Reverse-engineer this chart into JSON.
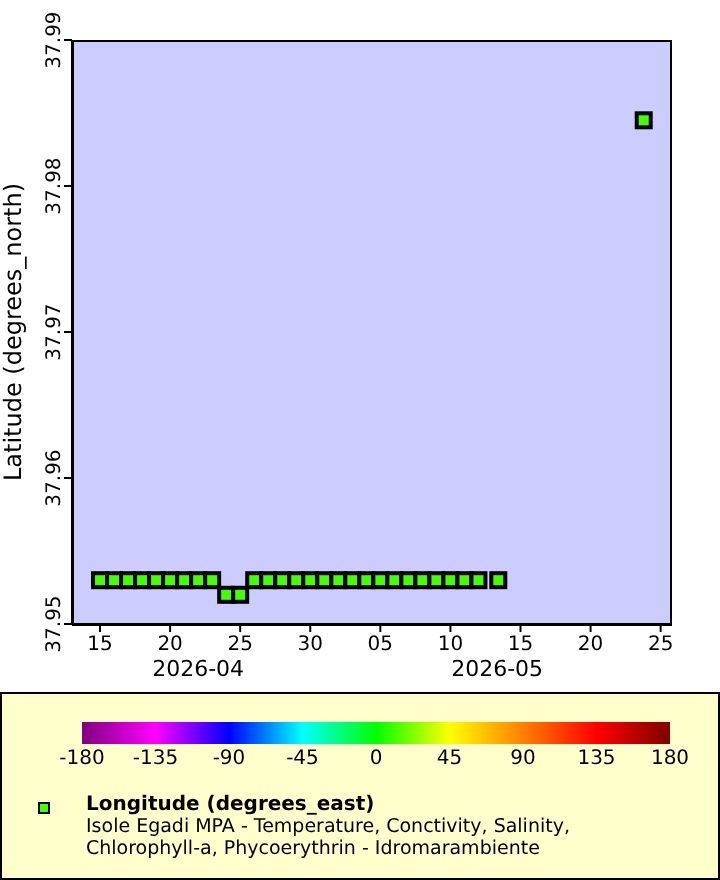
{
  "chart_data": {
    "type": "scatter",
    "title": "Isole Egadi MPA - Temperature, Conctivity, Salinity, Chlorophyll-a, Phycoerythrin - Idromarambiente",
    "ylabel": "Latitude (degrees_north)",
    "clabel": "Longitude (degrees_east)",
    "x": [
      "2026-04-15",
      "2026-04-16",
      "2026-04-17",
      "2026-04-18",
      "2026-04-19",
      "2026-04-20",
      "2026-04-21",
      "2026-04-22",
      "2026-04-23",
      "2026-04-24",
      "2026-04-25",
      "2026-04-26",
      "2026-04-27",
      "2026-04-28",
      "2026-04-29",
      "2026-04-30",
      "2026-05-01",
      "2026-05-02",
      "2026-05-03",
      "2026-05-04",
      "2026-05-05",
      "2026-05-06",
      "2026-05-07",
      "2026-05-08",
      "2026-05-09",
      "2026-05-10",
      "2026-05-11",
      "2026-05-12",
      "2026-05-13T10:00",
      "2026-05-23T19:00"
    ],
    "values": [
      37.953,
      37.953,
      37.953,
      37.953,
      37.953,
      37.953,
      37.953,
      37.953,
      37.953,
      37.952,
      37.952,
      37.953,
      37.953,
      37.953,
      37.953,
      37.953,
      37.953,
      37.953,
      37.953,
      37.953,
      37.953,
      37.953,
      37.953,
      37.953,
      37.953,
      37.953,
      37.953,
      37.953,
      37.953,
      37.9845
    ],
    "cvalues": [
      12,
      12,
      12,
      12,
      12,
      12,
      12,
      12,
      12,
      12,
      12,
      12,
      12,
      12,
      12,
      12,
      12,
      12,
      12,
      12,
      12,
      12,
      12,
      12,
      12,
      12,
      12,
      12,
      12,
      12
    ],
    "marker": "square",
    "xlim": [
      "2026-04-13",
      "2026-05-25T16:00"
    ],
    "xticks": [
      {
        "value": "2026-04-15",
        "label": "15"
      },
      {
        "value": "2026-04-20",
        "label": "20"
      },
      {
        "value": "2026-04-25",
        "label": "25"
      },
      {
        "value": "2026-04-30",
        "label": "30"
      },
      {
        "value": "2026-05-05",
        "label": "05"
      },
      {
        "value": "2026-05-10",
        "label": "10"
      },
      {
        "value": "2026-05-15",
        "label": "15"
      },
      {
        "value": "2026-05-20",
        "label": "20"
      },
      {
        "value": "2026-05-25",
        "label": "25"
      }
    ],
    "ylim": [
      37.95,
      37.99
    ],
    "yticks": [
      37.95,
      37.96,
      37.97,
      37.98,
      37.99
    ],
    "clim": [
      -180,
      180
    ],
    "cticks": [
      -180,
      -135,
      -90,
      -45,
      0,
      45,
      90,
      135,
      180
    ],
    "annotations": [
      "2026-04",
      "2026-05"
    ]
  }
}
